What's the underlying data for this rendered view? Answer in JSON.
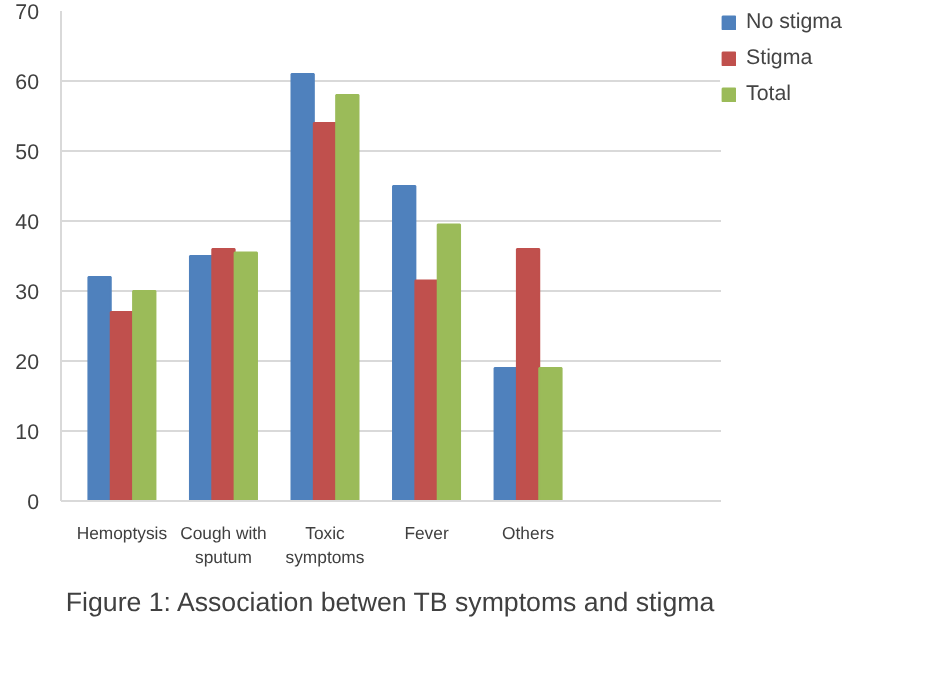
{
  "chart_data": {
    "type": "bar",
    "categories": [
      "Hemoptysis",
      "Cough with sputum",
      "Toxic symptoms",
      "Fever",
      "Others"
    ],
    "series": [
      {
        "name": "No stigma",
        "color": "#4f81bd",
        "values": [
          32,
          35,
          61,
          45,
          19
        ]
      },
      {
        "name": "Stigma",
        "color": "#c0504d",
        "values": [
          27,
          36,
          54,
          31.5,
          36
        ]
      },
      {
        "name": "Total",
        "color": "#9bbb59",
        "values": [
          30,
          35.5,
          58,
          39.5,
          19
        ]
      }
    ],
    "ylim": [
      0,
      70
    ],
    "yticks": [
      0,
      10,
      20,
      30,
      40,
      50,
      60,
      70
    ],
    "grid": "y",
    "legend": "right",
    "annotations": [
      "Figure 1: Association betwen TB symptoms and stigma"
    ]
  }
}
